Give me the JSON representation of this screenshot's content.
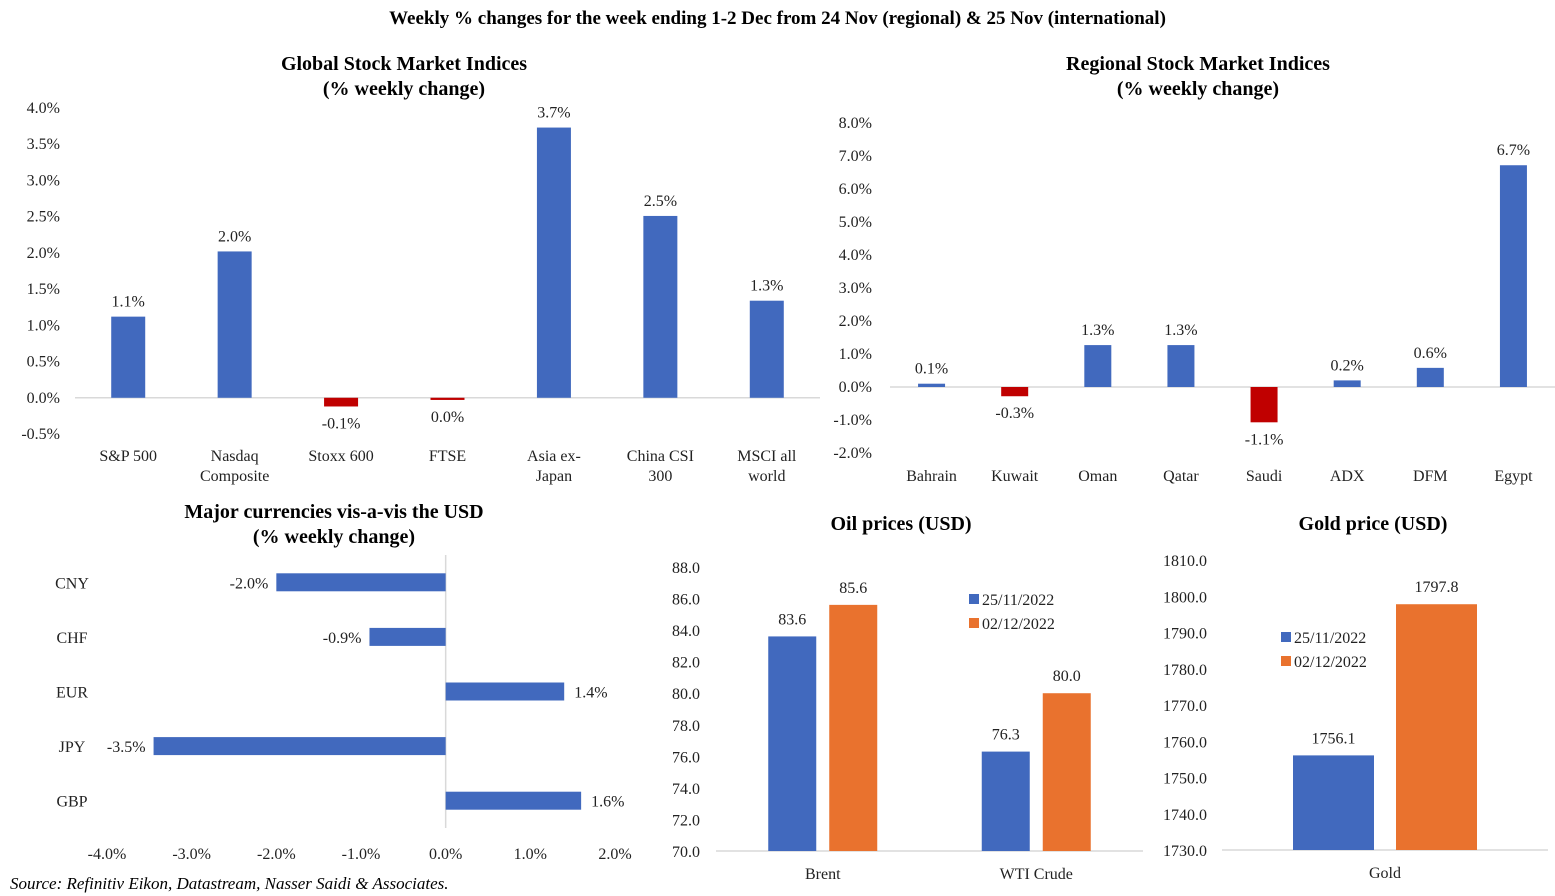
{
  "main_title": "Weekly % changes for the week ending 1-2 Dec from 24 Nov (regional) & 25 Nov (international)",
  "source": "Source: Refinitiv Eikon, Datastream, Nasser Saidi & Associates.",
  "colors": {
    "positive": "#4169BE",
    "negative": "#C00000",
    "series1": "#4169BE",
    "series2": "#E9722E",
    "axis": "#D9D9D9"
  },
  "chart_data": [
    {
      "id": "global",
      "type": "bar",
      "title": [
        "Global Stock Market Indices",
        "(% weekly change)"
      ],
      "categories": [
        [
          "S&P 500"
        ],
        [
          "Nasdaq",
          "Composite"
        ],
        [
          "Stoxx 600"
        ],
        [
          "FTSE"
        ],
        [
          "Asia ex-",
          "Japan"
        ],
        [
          "China CSI",
          "300"
        ],
        [
          "MSCI all",
          "world"
        ]
      ],
      "values": [
        1.12,
        2.02,
        -0.12,
        -0.03,
        3.73,
        2.51,
        1.34
      ],
      "labels": [
        "1.1%",
        "2.0%",
        "-0.1%",
        "0.0%",
        "3.7%",
        "2.5%",
        "1.3%"
      ],
      "ylim": [
        -0.5,
        4.0
      ],
      "yticks": [
        "4.0%",
        "3.5%",
        "3.0%",
        "2.5%",
        "2.0%",
        "1.5%",
        "1.0%",
        "0.5%",
        "0.0%",
        "-0.5%"
      ],
      "ytick_values": [
        4.0,
        3.5,
        3.0,
        2.5,
        2.0,
        1.5,
        1.0,
        0.5,
        0.0,
        -0.5
      ],
      "xlabel": "",
      "ylabel": "",
      "grid": false
    },
    {
      "id": "regional",
      "type": "bar",
      "title": [
        "Regional Stock Market Indices",
        "(% weekly change)"
      ],
      "categories": [
        [
          "Bahrain"
        ],
        [
          "Kuwait"
        ],
        [
          "Oman"
        ],
        [
          "Qatar"
        ],
        [
          "Saudi"
        ],
        [
          "ADX"
        ],
        [
          "DFM"
        ],
        [
          "Egypt"
        ]
      ],
      "values": [
        0.1,
        -0.28,
        1.27,
        1.27,
        -1.07,
        0.2,
        0.58,
        6.72
      ],
      "labels": [
        "0.1%",
        "-0.3%",
        "1.3%",
        "1.3%",
        "-1.1%",
        "0.2%",
        "0.6%",
        "6.7%"
      ],
      "ylim": [
        -2.0,
        8.0
      ],
      "yticks": [
        "8.0%",
        "7.0%",
        "6.0%",
        "5.0%",
        "4.0%",
        "3.0%",
        "2.0%",
        "1.0%",
        "0.0%",
        "-1.0%",
        "-2.0%"
      ],
      "ytick_values": [
        8,
        7,
        6,
        5,
        4,
        3,
        2,
        1,
        0,
        -1,
        -2
      ],
      "xlabel": "",
      "ylabel": "",
      "grid": false
    },
    {
      "id": "currencies",
      "type": "bar",
      "orientation": "horizontal",
      "title": [
        "Major currencies vis-a-vis the USD",
        "(% weekly change)"
      ],
      "categories": [
        "CNY",
        "CHF",
        "EUR",
        "JPY",
        "GBP"
      ],
      "values": [
        -2.0,
        -0.9,
        1.4,
        -3.45,
        1.6
      ],
      "labels": [
        "-2.0%",
        "-0.9%",
        "1.4%",
        "-3.5%",
        "1.6%"
      ],
      "xlim": [
        -4.0,
        2.0
      ],
      "xticks": [
        "-4.0%",
        "-3.0%",
        "-2.0%",
        "-1.0%",
        "0.0%",
        "1.0%",
        "2.0%"
      ],
      "xtick_values": [
        -4,
        -3,
        -2,
        -1,
        0,
        1,
        2
      ],
      "xlabel": "",
      "ylabel": "",
      "grid": false
    },
    {
      "id": "oil",
      "type": "bar",
      "title": [
        "Oil prices (USD)"
      ],
      "categories": [
        "Brent",
        "WTI Crude"
      ],
      "series": [
        {
          "name": "25/11/2022",
          "values": [
            83.6,
            76.3
          ],
          "labels": [
            "83.6",
            "76.3"
          ]
        },
        {
          "name": "02/12/2022",
          "values": [
            85.6,
            80.0
          ],
          "labels": [
            "85.6",
            "80.0"
          ]
        }
      ],
      "ylim": [
        70.0,
        88.0
      ],
      "yticks": [
        "88.0",
        "86.0",
        "84.0",
        "82.0",
        "80.0",
        "78.0",
        "76.0",
        "74.0",
        "72.0",
        "70.0"
      ],
      "ytick_values": [
        88,
        86,
        84,
        82,
        80,
        78,
        76,
        74,
        72,
        70
      ],
      "legend": "top-right",
      "xlabel": "",
      "ylabel": "",
      "grid": false
    },
    {
      "id": "gold",
      "type": "bar",
      "title": [
        "Gold price (USD)"
      ],
      "categories": [
        "Gold"
      ],
      "series": [
        {
          "name": "25/11/2022",
          "values": [
            1756.1
          ],
          "labels": [
            "1756.1"
          ]
        },
        {
          "name": "02/12/2022",
          "values": [
            1797.8
          ],
          "labels": [
            "1797.8"
          ]
        }
      ],
      "ylim": [
        1730.0,
        1810.0
      ],
      "yticks": [
        "1810.0",
        "1800.0",
        "1790.0",
        "1780.0",
        "1770.0",
        "1760.0",
        "1750.0",
        "1740.0",
        "1730.0"
      ],
      "ytick_values": [
        1810,
        1800,
        1790,
        1780,
        1770,
        1760,
        1750,
        1740,
        1730
      ],
      "legend": "center-left",
      "xlabel": "",
      "ylabel": "",
      "grid": false
    }
  ]
}
